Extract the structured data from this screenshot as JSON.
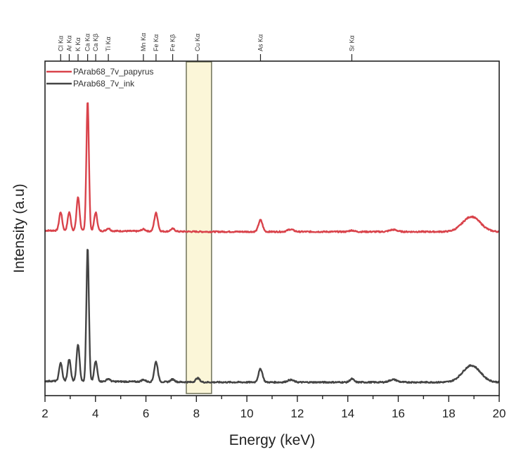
{
  "chart_data": {
    "type": "line",
    "title": "",
    "xlabel": "Energy (keV)",
    "ylabel": "Intensity (a.u)",
    "xlim": [
      2,
      20
    ],
    "ylim": [
      0,
      1
    ],
    "x_ticks": [
      2,
      4,
      6,
      8,
      10,
      12,
      14,
      16,
      18,
      20
    ],
    "y_ticks": [],
    "grid": false,
    "legend_position": "upper left",
    "legend": [
      "PArab68_7v_papyrus",
      "PArab68_7v_ink"
    ],
    "highlight_region": {
      "x_start": 7.6,
      "x_end": 8.6,
      "color": "#fbf6d8",
      "label": "Cu Kα"
    },
    "element_markers": [
      {
        "label": "Cl Kα",
        "energy": 2.62
      },
      {
        "label": "Ar Kα",
        "energy": 2.96
      },
      {
        "label": "K Kα",
        "energy": 3.31
      },
      {
        "label": "Ca Kα",
        "energy": 3.69
      },
      {
        "label": "Ca Kβ",
        "energy": 4.01
      },
      {
        "label": "Ti Kα",
        "energy": 4.51
      },
      {
        "label": "Mn Kα",
        "energy": 5.9
      },
      {
        "label": "Fe Kα",
        "energy": 6.4
      },
      {
        "label": "Fe Kβ",
        "energy": 7.06
      },
      {
        "label": "Cu Kα",
        "energy": 8.05
      },
      {
        "label": "As Kα",
        "energy": 10.54
      },
      {
        "label": "Sr Kα",
        "energy": 14.16
      }
    ],
    "series": [
      {
        "name": "PArab68_7v_papyrus",
        "color": "#d9434b",
        "offset": 0.49,
        "baseline": 0.0,
        "peaks": [
          {
            "energy": 2.62,
            "height": 0.055,
            "width": 0.06
          },
          {
            "energy": 2.96,
            "height": 0.055,
            "width": 0.06
          },
          {
            "energy": 3.31,
            "height": 0.1,
            "width": 0.06
          },
          {
            "energy": 3.69,
            "height": 0.39,
            "width": 0.05
          },
          {
            "energy": 4.01,
            "height": 0.055,
            "width": 0.06
          },
          {
            "energy": 4.51,
            "height": 0.008,
            "width": 0.07
          },
          {
            "energy": 5.9,
            "height": 0.006,
            "width": 0.08
          },
          {
            "energy": 6.4,
            "height": 0.055,
            "width": 0.07
          },
          {
            "energy": 7.06,
            "height": 0.008,
            "width": 0.08
          },
          {
            "energy": 10.54,
            "height": 0.035,
            "width": 0.08
          },
          {
            "energy": 11.73,
            "height": 0.007,
            "width": 0.12
          },
          {
            "energy": 14.16,
            "height": 0.004,
            "width": 0.1
          },
          {
            "energy": 15.8,
            "height": 0.006,
            "width": 0.15
          },
          {
            "energy": 18.9,
            "height": 0.045,
            "width": 0.35
          }
        ]
      },
      {
        "name": "PArab68_7v_ink",
        "color": "#444444",
        "offset": 0.04,
        "baseline": 0.0,
        "peaks": [
          {
            "energy": 2.62,
            "height": 0.055,
            "width": 0.06
          },
          {
            "energy": 2.96,
            "height": 0.065,
            "width": 0.06
          },
          {
            "energy": 3.31,
            "height": 0.11,
            "width": 0.06
          },
          {
            "energy": 3.69,
            "height": 0.4,
            "width": 0.05
          },
          {
            "energy": 4.01,
            "height": 0.06,
            "width": 0.06
          },
          {
            "energy": 4.51,
            "height": 0.008,
            "width": 0.07
          },
          {
            "energy": 5.9,
            "height": 0.006,
            "width": 0.08
          },
          {
            "energy": 6.4,
            "height": 0.06,
            "width": 0.07
          },
          {
            "energy": 7.06,
            "height": 0.008,
            "width": 0.08
          },
          {
            "energy": 8.05,
            "height": 0.012,
            "width": 0.08
          },
          {
            "energy": 10.54,
            "height": 0.04,
            "width": 0.08
          },
          {
            "energy": 11.73,
            "height": 0.007,
            "width": 0.12
          },
          {
            "energy": 14.16,
            "height": 0.01,
            "width": 0.08
          },
          {
            "energy": 15.8,
            "height": 0.008,
            "width": 0.15
          },
          {
            "energy": 18.9,
            "height": 0.05,
            "width": 0.35
          }
        ]
      }
    ]
  }
}
